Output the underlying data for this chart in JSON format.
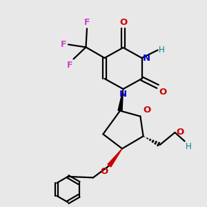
{
  "bg_color": "#e8e8e8",
  "bond_color": "#000000",
  "N_color": "#0000cc",
  "O_color": "#cc0000",
  "F_color": "#cc44cc",
  "H_color": "#008080",
  "line_width": 1.6,
  "figsize": [
    3.0,
    3.0
  ],
  "dpi": 100,
  "xlim": [
    0,
    10
  ],
  "ylim": [
    0,
    10
  ]
}
